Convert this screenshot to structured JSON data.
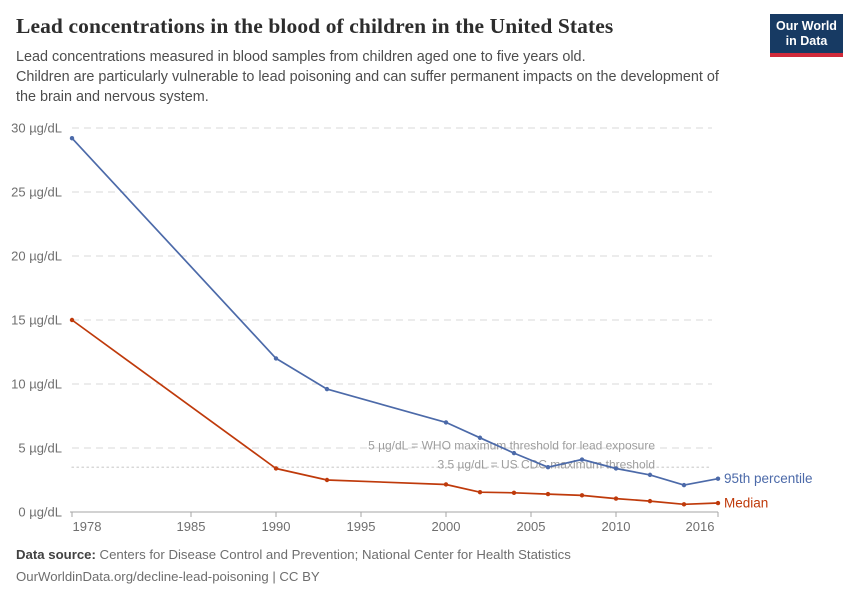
{
  "header": {
    "title": "Lead concentrations in the blood of children in the United States",
    "subtitle_lines": [
      "Lead concentrations measured in blood samples from children aged one to five years old.",
      "Children are particularly vulnerable to lead poisoning and can suffer permanent impacts on the development of",
      "the brain and nervous system."
    ],
    "logo": {
      "line1": "Our World",
      "line2": "in Data",
      "bg_color": "#173a63",
      "stripe_color": "#d12a3a"
    }
  },
  "chart_data": {
    "type": "line",
    "title": "Lead concentrations in the blood of children in the United States",
    "unit": "µg/dL",
    "xlim": [
      1978,
      2016
    ],
    "ylim": [
      0,
      30
    ],
    "grid": "horizontal-dashed",
    "legend_position": "end-of-line-labels",
    "x_ticks": [
      1978,
      1985,
      1990,
      1995,
      2000,
      2005,
      2010,
      2016
    ],
    "y_ticks": [
      0,
      5,
      10,
      15,
      20,
      25,
      30
    ],
    "x": [
      1978,
      1990,
      1993,
      2000,
      2002,
      2004,
      2006,
      2008,
      2010,
      2012,
      2014,
      2016
    ],
    "series": [
      {
        "name": "95th percentile",
        "color": "#4c6aa9",
        "values": [
          29.2,
          12.0,
          9.6,
          7.0,
          5.8,
          4.6,
          3.5,
          4.1,
          3.4,
          2.9,
          2.1,
          2.6
        ]
      },
      {
        "name": "Median",
        "color": "#bf3a0b",
        "values": [
          15.0,
          3.4,
          2.5,
          2.15,
          1.55,
          1.5,
          1.4,
          1.3,
          1.05,
          0.85,
          0.6,
          0.7
        ]
      }
    ],
    "annotations": [
      {
        "text": "5 µg/dL = WHO maximum threshold for lead exposure",
        "value": 5,
        "line_style": "none"
      },
      {
        "text": "3.5 µg/dL = US CDC maximum threshold",
        "value": 3.5,
        "line_style": "dotted"
      }
    ],
    "colors": {
      "gridline": "#d9d9d9",
      "dotted_line": "#cccccc",
      "axis": "#a6a6a6",
      "tick_label": "#6f6f6f",
      "annotation_text": "#9e9e9e"
    }
  },
  "footer": {
    "source_label": "Data source:",
    "source_text": " Centers for Disease Control and Prevention; National Center for Health Statistics",
    "link_line": "OurWorldinData.org/decline-lead-poisoning | CC BY"
  }
}
